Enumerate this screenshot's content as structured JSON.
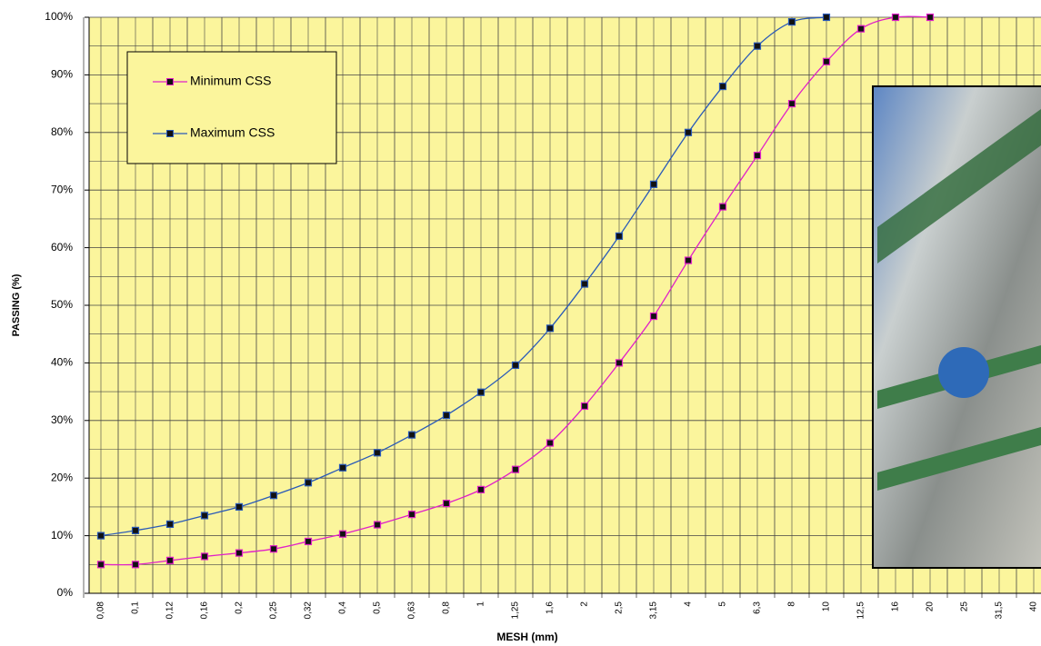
{
  "chart_data": {
    "type": "line",
    "x_label": "MESH (mm)",
    "y_label": "PASSING (%)",
    "categories": [
      "0,08",
      "0,1",
      "0,12",
      "0,16",
      "0,2",
      "0,25",
      "0,32",
      "0,4",
      "0,5",
      "0,63",
      "0,8",
      "1",
      "1,25",
      "1,6",
      "2",
      "2,5",
      "3,15",
      "4",
      "5",
      "6,3",
      "8",
      "10",
      "12,5",
      "16",
      "20",
      "25",
      "31,5",
      "40"
    ],
    "series": [
      {
        "name": "Minimum CSS",
        "color": "#e020c8",
        "values": [
          5,
          5,
          5.7,
          6.4,
          7,
          7.7,
          9,
          10.3,
          11.9,
          13.7,
          15.6,
          18,
          21.5,
          26.1,
          32.5,
          40,
          48.1,
          57.8,
          67.1,
          76,
          85,
          92.3,
          98,
          100,
          100,
          null,
          null,
          null
        ]
      },
      {
        "name": "Maximum CSS",
        "color": "#2a5ab8",
        "values": [
          10,
          10.9,
          12,
          13.5,
          15,
          17,
          19.2,
          21.8,
          24.4,
          27.5,
          30.9,
          34.9,
          39.6,
          46,
          53.7,
          62,
          71,
          80,
          88,
          95,
          99.2,
          100,
          null,
          null,
          null,
          null,
          null,
          null
        ]
      }
    ],
    "ylim": [
      0,
      100
    ],
    "yticks": [
      {
        "value": 0,
        "label": "0%"
      },
      {
        "value": 10,
        "label": "10%"
      },
      {
        "value": 20,
        "label": "20%"
      },
      {
        "value": 30,
        "label": "30%"
      },
      {
        "value": 40,
        "label": "40%"
      },
      {
        "value": 50,
        "label": "50%"
      },
      {
        "value": 60,
        "label": "60%"
      },
      {
        "value": 70,
        "label": "70%"
      },
      {
        "value": 80,
        "label": "80%"
      },
      {
        "value": 90,
        "label": "90%"
      },
      {
        "value": 100,
        "label": "100%"
      }
    ],
    "grid": true,
    "background": "#fbf59c"
  }
}
